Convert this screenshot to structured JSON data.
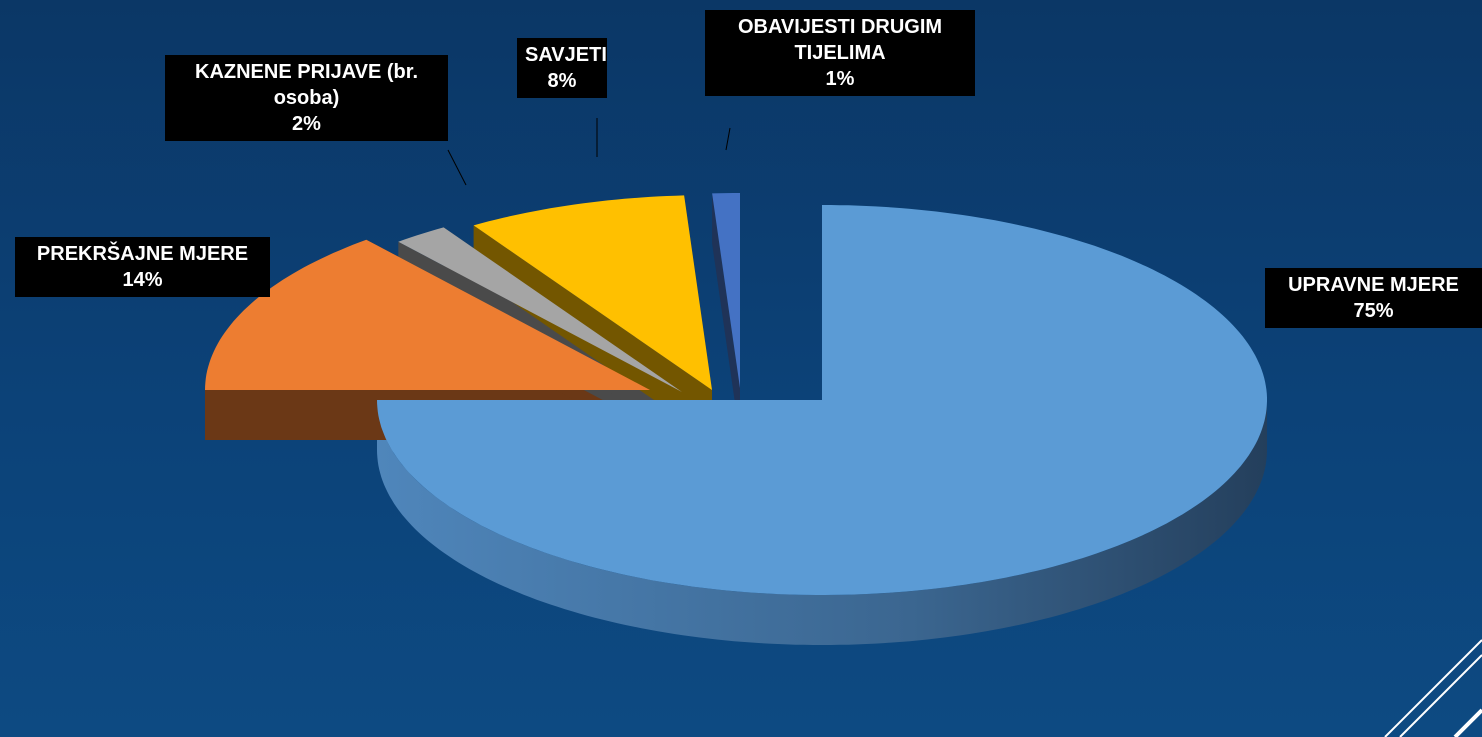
{
  "chart_data": {
    "type": "pie",
    "three_d": true,
    "categories": [
      "UPRAVNE MJERE",
      "PREKRŠAJNE MJERE",
      "KAZNENE PRIJAVE (br. osoba)",
      "SAVJETI",
      "OBAVIJESTI DRUGIM TIJELIMA"
    ],
    "values": [
      75,
      14,
      2,
      8,
      1
    ],
    "value_labels": [
      "75%",
      "14%",
      "2%",
      "8%",
      "1%"
    ],
    "colors": [
      "#5b9bd5",
      "#ed7d31",
      "#a5a5a5",
      "#ffc000",
      "#4472c4"
    ]
  }
}
